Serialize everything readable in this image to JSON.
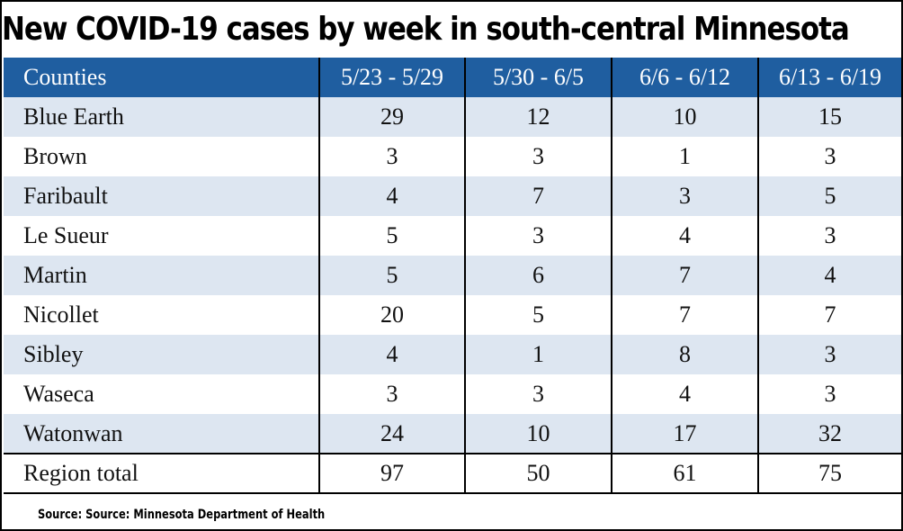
{
  "title": "New COVID-19 cases by week in south-central Minnesota",
  "source": "Source: Source: Minnesota Department of Health",
  "colors": {
    "header_bg": "#1f5ea0",
    "row_shade": "#dde6f1",
    "row_plain": "#ffffff"
  },
  "chart_data": {
    "type": "table",
    "title": "New COVID-19 cases by week in south-central Minnesota",
    "columns": [
      "Counties",
      "5/23 - 5/29",
      "5/30 - 6/5",
      "6/6 - 6/12",
      "6/13 - 6/19"
    ],
    "rows": [
      {
        "county": "Blue Earth",
        "values": [
          29,
          12,
          10,
          15
        ]
      },
      {
        "county": "Brown",
        "values": [
          3,
          3,
          1,
          3
        ]
      },
      {
        "county": "Faribault",
        "values": [
          4,
          7,
          3,
          5
        ]
      },
      {
        "county": "Le Sueur",
        "values": [
          5,
          3,
          4,
          3
        ]
      },
      {
        "county": "Martin",
        "values": [
          5,
          6,
          7,
          4
        ]
      },
      {
        "county": "Nicollet",
        "values": [
          20,
          5,
          7,
          7
        ]
      },
      {
        "county": "Sibley",
        "values": [
          4,
          1,
          8,
          3
        ]
      },
      {
        "county": "Waseca",
        "values": [
          3,
          3,
          4,
          3
        ]
      },
      {
        "county": "Watonwan",
        "values": [
          24,
          10,
          17,
          32
        ]
      }
    ],
    "total": {
      "label": "Region total",
      "values": [
        97,
        50,
        61,
        75
      ]
    }
  }
}
